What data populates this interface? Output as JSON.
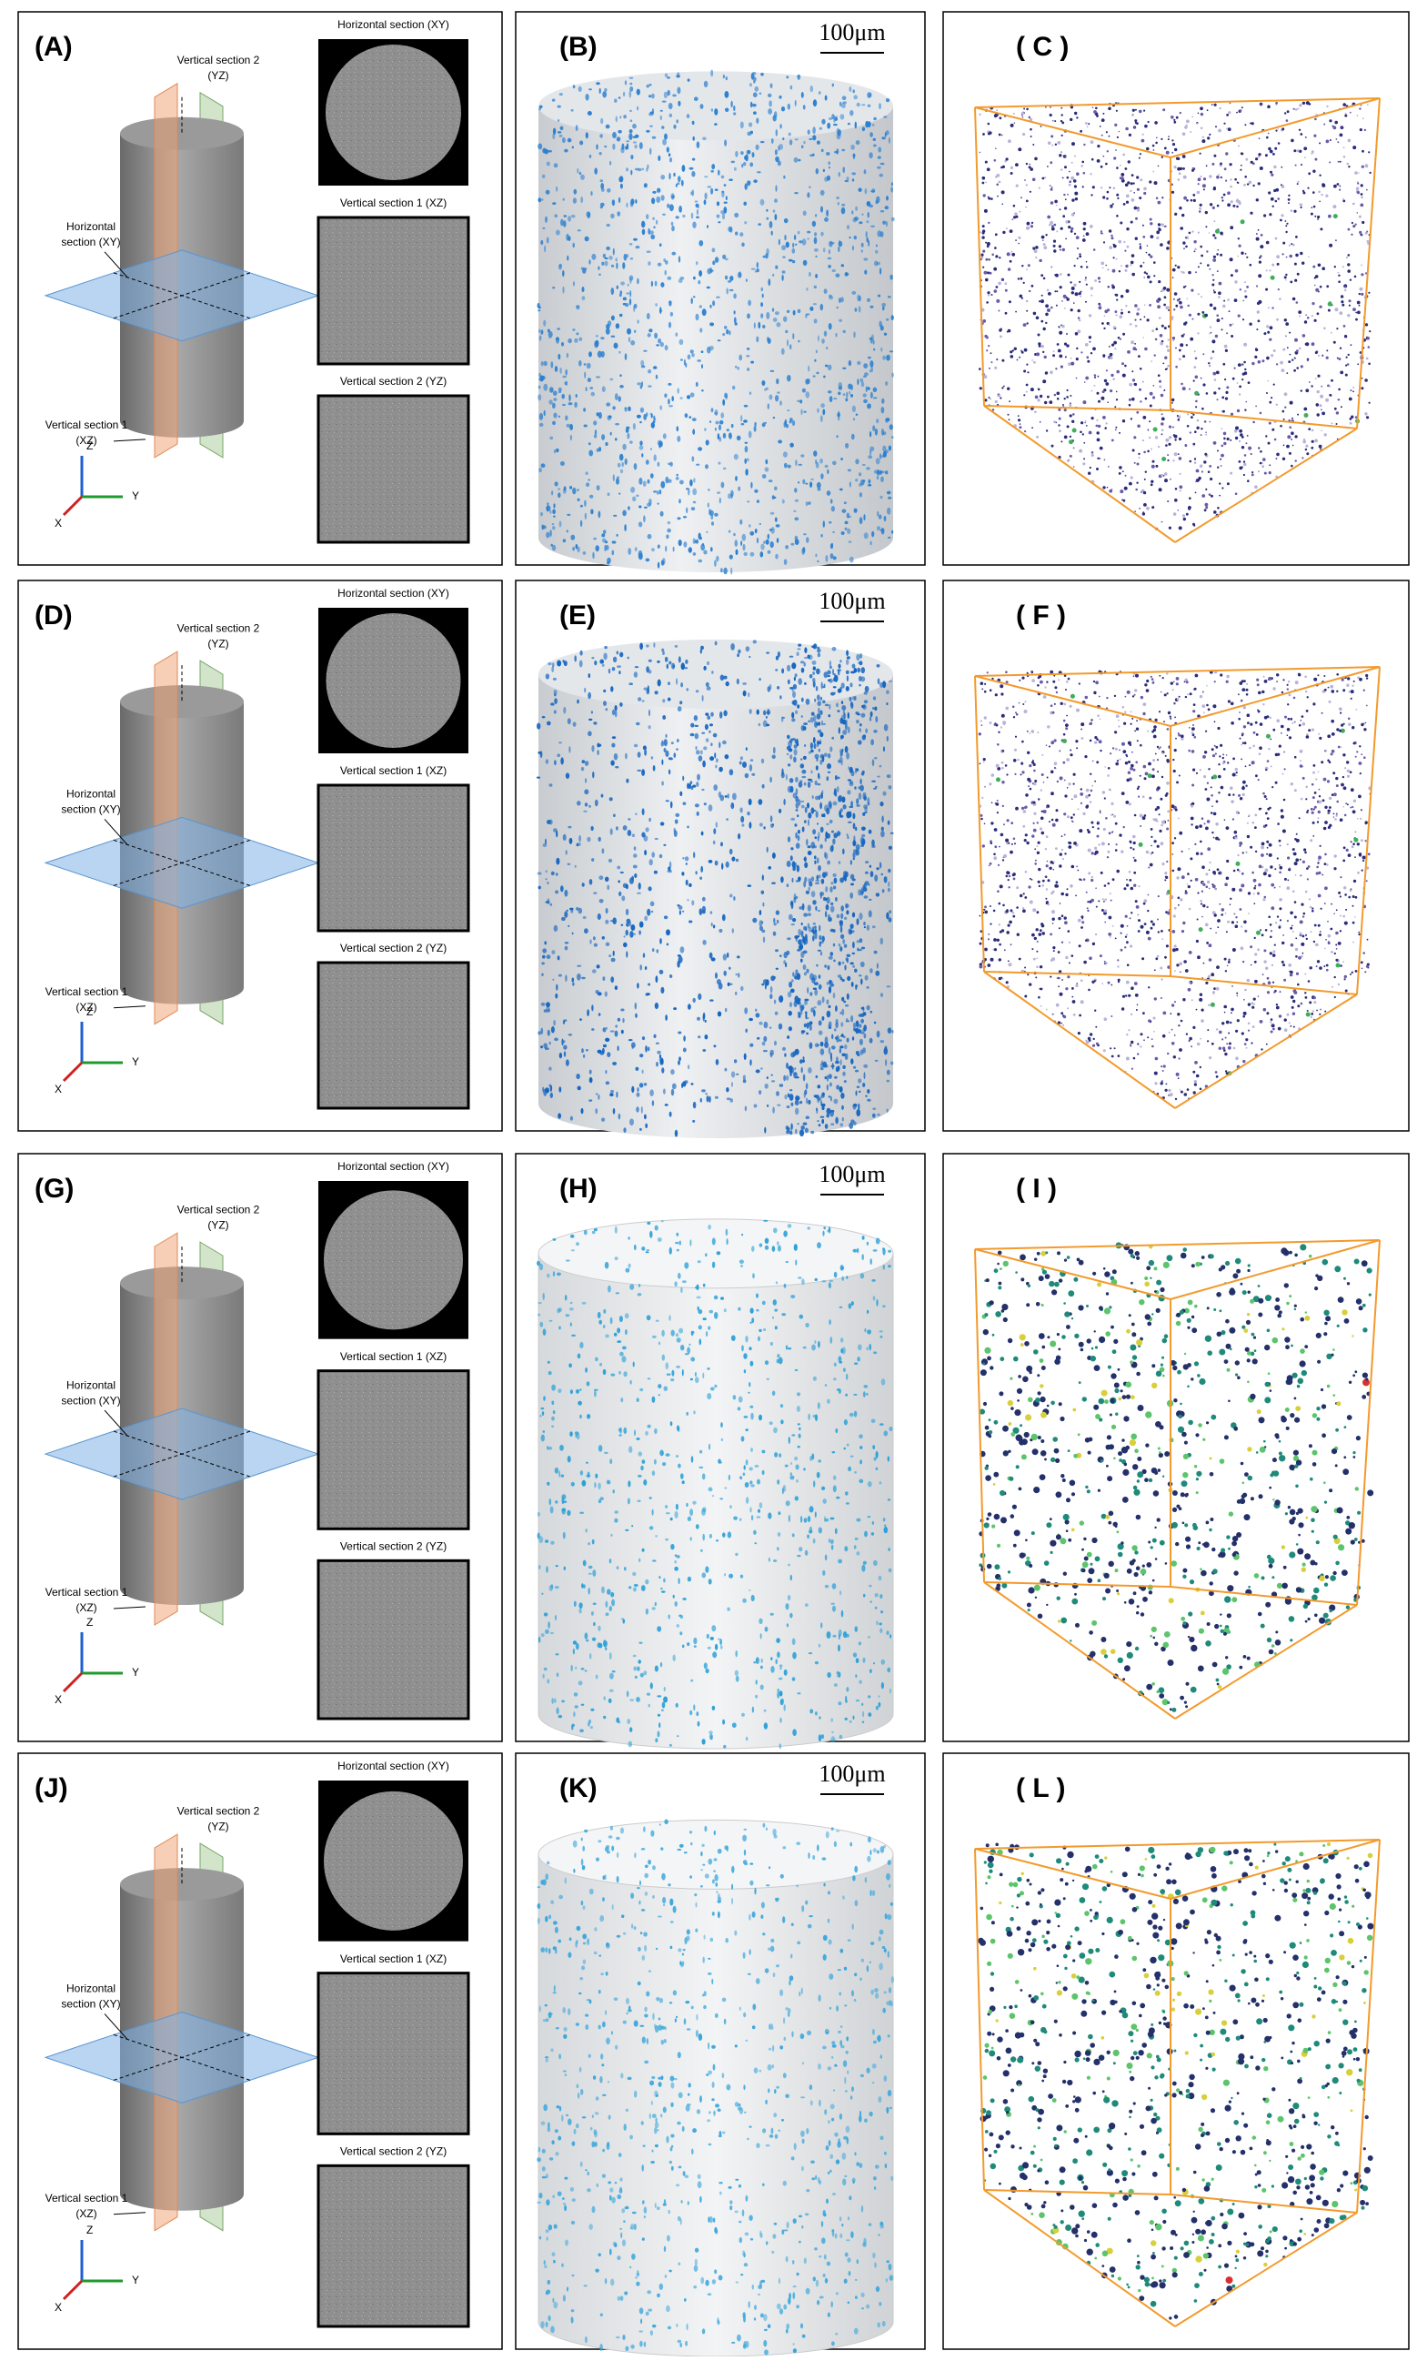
{
  "rows": [
    {
      "schematic": {
        "label": "(A)",
        "annotations": [
          "Vertical section 2",
          "(YZ)",
          "Horizontal",
          "section (XY)",
          "Vertical section 1",
          "(XZ)"
        ],
        "axes": [
          "Z",
          "Y",
          "X"
        ],
        "sections": [
          "Horizontal section (XY)",
          "Vertical section 1 (XZ)",
          "Vertical section 2 (YZ)"
        ]
      },
      "volume": {
        "label": "(B)",
        "scale_bar": "100μm"
      },
      "pores": {
        "label": "( C )"
      }
    },
    {
      "schematic": {
        "label": "(D)",
        "annotations": [
          "Vertical section 2",
          "(YZ)",
          "Horizontal",
          "section (XY)",
          "Vertical section 1",
          "(XZ)"
        ],
        "axes": [
          "Z",
          "Y",
          "X"
        ],
        "sections": [
          "Horizontal section (XY)",
          "Vertical section 1 (XZ)",
          "Vertical section 2 (YZ)"
        ]
      },
      "volume": {
        "label": "(E)",
        "scale_bar": "100μm"
      },
      "pores": {
        "label": "( F )"
      }
    },
    {
      "schematic": {
        "label": "(G)",
        "annotations": [
          "Vertical section 2",
          "(YZ)",
          "Horizontal",
          "section (XY)",
          "Vertical section 1",
          "(XZ)"
        ],
        "axes": [
          "Z",
          "Y",
          "X"
        ],
        "sections": [
          "Horizontal section (XY)",
          "Vertical section 1 (XZ)",
          "Vertical section 2 (YZ)"
        ]
      },
      "volume": {
        "label": "(H)",
        "scale_bar": "100μm"
      },
      "pores": {
        "label": "( I )"
      }
    },
    {
      "schematic": {
        "label": "(J)",
        "annotations": [
          "Vertical section 2",
          "(YZ)",
          "Horizontal",
          "section (XY)",
          "Vertical section 1",
          "(XZ)"
        ],
        "axes": [
          "Z",
          "Y",
          "X"
        ],
        "sections": [
          "Horizontal section (XY)",
          "Vertical section 1 (XZ)",
          "Vertical section 2 (YZ)"
        ]
      },
      "volume": {
        "label": "(K)",
        "scale_bar": "100μm"
      },
      "pores": {
        "label": "( L )"
      }
    }
  ]
}
